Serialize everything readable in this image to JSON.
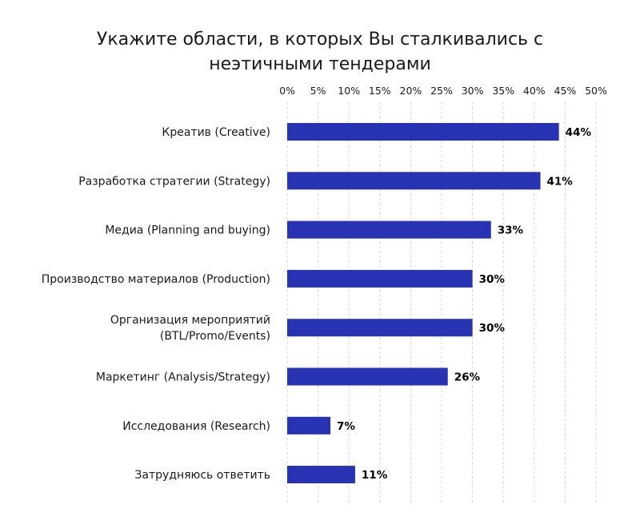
{
  "chart_data": {
    "type": "bar",
    "orientation": "horizontal",
    "title": [
      "Укажите области, в которых Вы сталкивались с",
      "неэтичными тендерами"
    ],
    "categories": [
      [
        "Креатив (Creative)"
      ],
      [
        "Разработка стратегии (Strategy)"
      ],
      [
        "Медиа (Planning and buying)"
      ],
      [
        "Производство материалов (Production)"
      ],
      [
        "Организация мероприятий",
        "(BTL/Promo/Events)"
      ],
      [
        "Маркетинг (Analysis/Strategy)"
      ],
      [
        "Исследования (Research)"
      ],
      [
        "Затрудняюсь ответить"
      ]
    ],
    "values": [
      44,
      41,
      33,
      30,
      30,
      26,
      7,
      11
    ],
    "value_labels": [
      "44%",
      "41%",
      "33%",
      "30%",
      "30%",
      "26%",
      "7%",
      "11%"
    ],
    "xlim": [
      0,
      50
    ],
    "ticks": [
      0,
      5,
      10,
      15,
      20,
      25,
      30,
      35,
      40,
      45,
      50
    ],
    "tick_labels": [
      "0%",
      "5%",
      "10%",
      "15%",
      "20%",
      "25%",
      "30%",
      "35%",
      "40%",
      "45%",
      "50%"
    ],
    "axis_position": "top",
    "grid": true,
    "legend": "none",
    "bar_color": "#2733b3"
  }
}
